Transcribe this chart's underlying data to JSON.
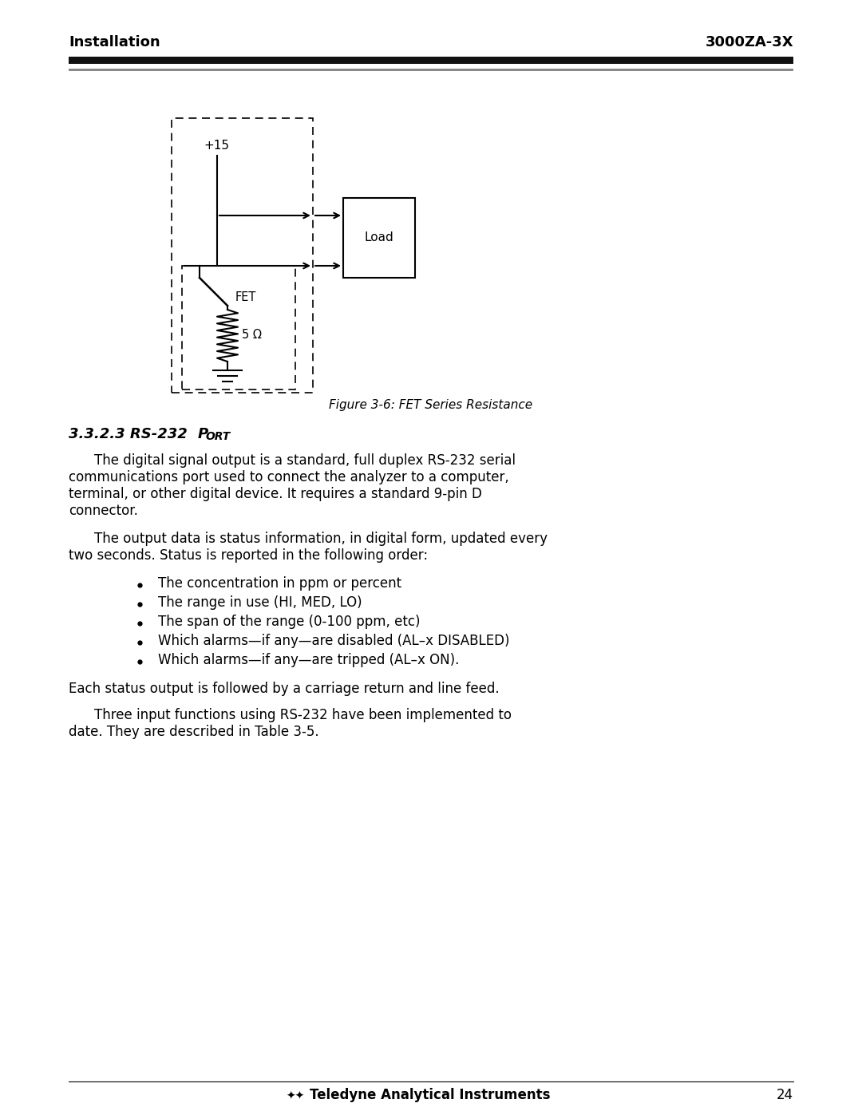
{
  "header_left": "Installation",
  "header_right": "3000ZA-3X",
  "figure_caption": "Figure 3-6: FET Series Resistance",
  "bullets": [
    "The concentration in ppm or percent",
    "The range in use (HI, MED, LO)",
    "The span of the range (0-100 ppm, etc)",
    "Which alarms—if any—are disabled (AL–x DISABLED)",
    "Which alarms—if any—are tripped (AL–x ON)."
  ],
  "para3": "Each status output is followed by a carriage return and line feed.",
  "footer_text": "Teledyne Analytical Instruments",
  "footer_page": "24",
  "bg_color": "#ffffff",
  "text_color": "#000000",
  "header_bar_color": "#111111"
}
